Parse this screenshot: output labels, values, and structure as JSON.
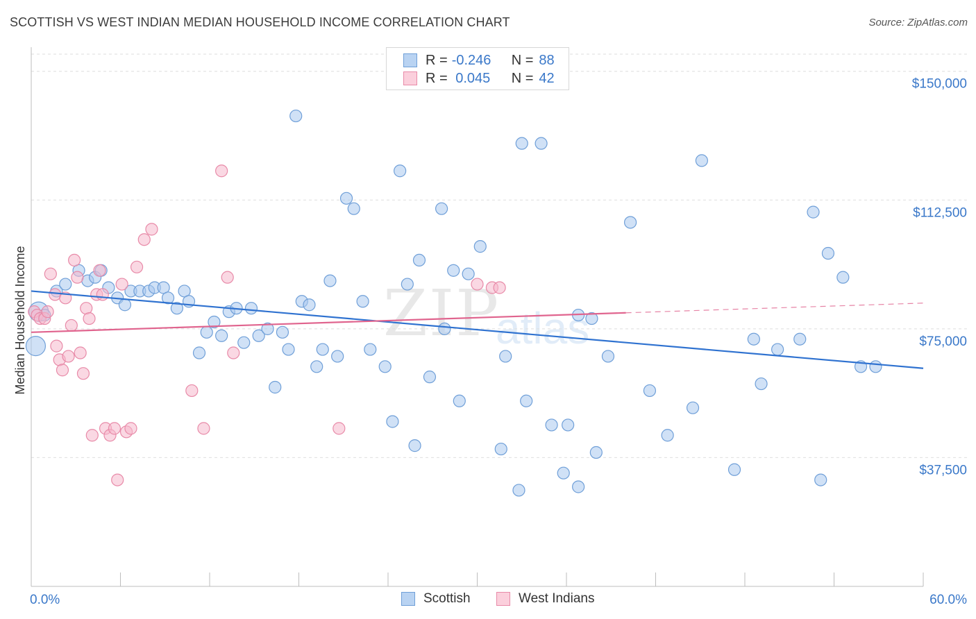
{
  "header": {
    "title": "SCOTTISH VS WEST INDIAN MEDIAN HOUSEHOLD INCOME CORRELATION CHART",
    "source": "Source: ZipAtlas.com"
  },
  "watermark": {
    "zip": "ZIP",
    "atlas": "atlas"
  },
  "legend": {
    "rows": [
      {
        "r_label": "R =",
        "r_value": "-0.246",
        "n_label": "N =",
        "n_value": "88"
      },
      {
        "r_label": "R =",
        "r_value": " 0.045",
        "n_label": "N =",
        "n_value": "42"
      }
    ]
  },
  "bottom_legend": [
    "Scottish",
    "West Indians"
  ],
  "colors": {
    "scottish_fill": "#a9c8ee",
    "scottish_stroke": "#6f9fd8",
    "scottish_line": "#2f72d0",
    "westindian_fill": "#f6b8cc",
    "westindian_stroke": "#e88aa8",
    "westindian_line": "#e0648e",
    "tick_label": "#3a78c9",
    "grid": "#dedede"
  },
  "chart_data": {
    "type": "scatter",
    "title": "SCOTTISH VS WEST INDIAN MEDIAN HOUSEHOLD INCOME CORRELATION CHART",
    "xlabel": "",
    "ylabel": "Median Household Income",
    "xlim": [
      0,
      60
    ],
    "ylim": [
      0,
      155000
    ],
    "x_tick_labels": [
      "0.0%",
      "60.0%"
    ],
    "y_ticks": [
      37500,
      75000,
      112500,
      150000
    ],
    "y_tick_labels": [
      "$37,500",
      "$75,000",
      "$112,500",
      "$150,000"
    ],
    "grid": true,
    "series": [
      {
        "name": "Scottish",
        "R": -0.246,
        "N": 88,
        "trend": {
          "x": [
            0,
            60
          ],
          "y": [
            86000,
            63500
          ],
          "dashed_from": null
        },
        "points": [
          [
            0.3,
            70000
          ],
          [
            0.5,
            80000
          ],
          [
            0.9,
            79000
          ],
          [
            1.7,
            86000
          ],
          [
            2.3,
            88000
          ],
          [
            3.2,
            92000
          ],
          [
            3.8,
            89000
          ],
          [
            4.3,
            90000
          ],
          [
            4.7,
            92000
          ],
          [
            5.2,
            87000
          ],
          [
            5.8,
            84000
          ],
          [
            6.3,
            82000
          ],
          [
            6.7,
            86000
          ],
          [
            7.3,
            86000
          ],
          [
            7.9,
            86000
          ],
          [
            8.3,
            87000
          ],
          [
            8.9,
            87000
          ],
          [
            9.2,
            84000
          ],
          [
            9.8,
            81000
          ],
          [
            10.3,
            86000
          ],
          [
            10.6,
            83000
          ],
          [
            11.3,
            68000
          ],
          [
            11.8,
            74000
          ],
          [
            12.3,
            77000
          ],
          [
            12.8,
            73000
          ],
          [
            13.3,
            80000
          ],
          [
            13.8,
            81000
          ],
          [
            14.3,
            71000
          ],
          [
            14.8,
            81000
          ],
          [
            15.3,
            73000
          ],
          [
            15.9,
            75000
          ],
          [
            16.4,
            58000
          ],
          [
            16.9,
            74000
          ],
          [
            17.3,
            69000
          ],
          [
            17.8,
            137000
          ],
          [
            18.2,
            83000
          ],
          [
            18.7,
            82000
          ],
          [
            19.2,
            64000
          ],
          [
            19.6,
            69000
          ],
          [
            20.1,
            89000
          ],
          [
            20.6,
            67000
          ],
          [
            21.2,
            113000
          ],
          [
            21.7,
            110000
          ],
          [
            22.3,
            83000
          ],
          [
            22.8,
            69000
          ],
          [
            23.8,
            64000
          ],
          [
            24.3,
            48000
          ],
          [
            24.8,
            121000
          ],
          [
            25.3,
            88000
          ],
          [
            25.8,
            41000
          ],
          [
            26.1,
            95000
          ],
          [
            26.8,
            61000
          ],
          [
            27.6,
            110000
          ],
          [
            27.8,
            75000
          ],
          [
            28.4,
            92000
          ],
          [
            28.8,
            54000
          ],
          [
            29.4,
            91000
          ],
          [
            30.2,
            99000
          ],
          [
            31.6,
            40000
          ],
          [
            31.9,
            67000
          ],
          [
            32.8,
            28000
          ],
          [
            33.0,
            129000
          ],
          [
            33.3,
            54000
          ],
          [
            34.3,
            129000
          ],
          [
            35.0,
            47000
          ],
          [
            35.8,
            33000
          ],
          [
            36.1,
            47000
          ],
          [
            36.8,
            29000
          ],
          [
            36.8,
            79000
          ],
          [
            37.7,
            78000
          ],
          [
            38.0,
            39000
          ],
          [
            38.8,
            67000
          ],
          [
            40.3,
            106000
          ],
          [
            41.6,
            57000
          ],
          [
            42.8,
            44000
          ],
          [
            44.5,
            52000
          ],
          [
            45.1,
            124000
          ],
          [
            47.3,
            34000
          ],
          [
            48.6,
            72000
          ],
          [
            49.1,
            59000
          ],
          [
            50.2,
            69000
          ],
          [
            51.7,
            72000
          ],
          [
            52.6,
            109000
          ],
          [
            53.1,
            31000
          ],
          [
            53.6,
            97000
          ],
          [
            54.6,
            90000
          ],
          [
            55.8,
            64000
          ],
          [
            56.8,
            64000
          ]
        ]
      },
      {
        "name": "West Indians",
        "R": 0.045,
        "N": 42,
        "trend": {
          "x": [
            0,
            60
          ],
          "y": [
            74000,
            82500
          ],
          "dashed_from": 40
        },
        "points": [
          [
            0.2,
            80000
          ],
          [
            0.4,
            79000
          ],
          [
            0.6,
            78000
          ],
          [
            0.9,
            78000
          ],
          [
            1.1,
            80000
          ],
          [
            1.3,
            91000
          ],
          [
            1.6,
            85000
          ],
          [
            1.7,
            70000
          ],
          [
            1.9,
            66000
          ],
          [
            2.1,
            63000
          ],
          [
            2.3,
            84000
          ],
          [
            2.5,
            67000
          ],
          [
            2.7,
            76000
          ],
          [
            2.9,
            95000
          ],
          [
            3.1,
            90000
          ],
          [
            3.3,
            68000
          ],
          [
            3.5,
            62000
          ],
          [
            3.7,
            81000
          ],
          [
            3.9,
            78000
          ],
          [
            4.1,
            44000
          ],
          [
            4.4,
            85000
          ],
          [
            4.6,
            92000
          ],
          [
            4.8,
            85000
          ],
          [
            5.0,
            46000
          ],
          [
            5.3,
            44000
          ],
          [
            5.6,
            46000
          ],
          [
            5.8,
            31000
          ],
          [
            6.1,
            88000
          ],
          [
            6.4,
            45000
          ],
          [
            6.7,
            46000
          ],
          [
            7.1,
            93000
          ],
          [
            7.6,
            101000
          ],
          [
            8.1,
            104000
          ],
          [
            10.8,
            57000
          ],
          [
            11.6,
            46000
          ],
          [
            12.8,
            121000
          ],
          [
            13.2,
            90000
          ],
          [
            13.6,
            68000
          ],
          [
            20.7,
            46000
          ],
          [
            30.0,
            88000
          ],
          [
            31.0,
            87000
          ],
          [
            31.5,
            87000
          ]
        ]
      }
    ]
  }
}
